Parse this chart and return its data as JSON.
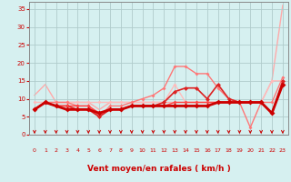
{
  "xlabel": "Vent moyen/en rafales ( km/h )",
  "xlim": [
    -0.5,
    23.5
  ],
  "ylim": [
    0,
    37
  ],
  "yticks": [
    0,
    5,
    10,
    15,
    20,
    25,
    30,
    35
  ],
  "xticks": [
    0,
    1,
    2,
    3,
    4,
    5,
    6,
    7,
    8,
    9,
    10,
    11,
    12,
    13,
    14,
    15,
    16,
    17,
    18,
    19,
    20,
    21,
    22,
    23
  ],
  "bg_color": "#d6f0f0",
  "grid_color": "#b0cccc",
  "series": [
    {
      "x": [
        0,
        1,
        2,
        3,
        4,
        5,
        6,
        7,
        8,
        9,
        10,
        11,
        12,
        13,
        14,
        15,
        16,
        17,
        18,
        19,
        20,
        21,
        22,
        23
      ],
      "y": [
        11,
        14,
        9,
        9,
        9,
        9,
        7,
        9,
        9,
        9,
        9,
        9,
        9,
        9,
        9,
        9,
        9,
        9,
        9,
        9,
        9,
        9,
        15,
        36
      ],
      "color": "#ffaaaa",
      "lw": 1.0,
      "marker": null,
      "ms": 0,
      "zorder": 1
    },
    {
      "x": [
        0,
        1,
        2,
        3,
        4,
        5,
        6,
        7,
        8,
        9,
        10,
        11,
        12,
        13,
        14,
        15,
        16,
        17,
        18,
        19,
        20,
        21,
        22,
        23
      ],
      "y": [
        9,
        9,
        9,
        9,
        9,
        9,
        9,
        9,
        9,
        9,
        9,
        9,
        9,
        14,
        9,
        9,
        9,
        9,
        9,
        9,
        9,
        9,
        15,
        15
      ],
      "color": "#ffbbbb",
      "lw": 1.0,
      "marker": "D",
      "ms": 2.0,
      "zorder": 2
    },
    {
      "x": [
        0,
        1,
        2,
        3,
        4,
        5,
        6,
        7,
        8,
        9,
        10,
        11,
        12,
        13,
        14,
        15,
        16,
        17,
        18,
        19,
        20,
        21,
        22,
        23
      ],
      "y": [
        7,
        9,
        9,
        9,
        8,
        8,
        5,
        8,
        8,
        9,
        10,
        11,
        13,
        19,
        19,
        17,
        17,
        13,
        10,
        9,
        2,
        9,
        9,
        16
      ],
      "color": "#ff7777",
      "lw": 1.0,
      "marker": "D",
      "ms": 2.0,
      "zorder": 3
    },
    {
      "x": [
        0,
        1,
        2,
        3,
        4,
        5,
        6,
        7,
        8,
        9,
        10,
        11,
        12,
        13,
        14,
        15,
        16,
        17,
        18,
        19,
        20,
        21,
        22,
        23
      ],
      "y": [
        7,
        9,
        8,
        8,
        7,
        7,
        5,
        7,
        7,
        8,
        8,
        8,
        9,
        12,
        13,
        13,
        10,
        14,
        10,
        9,
        9,
        9,
        6,
        15
      ],
      "color": "#dd2222",
      "lw": 1.2,
      "marker": "D",
      "ms": 2.5,
      "zorder": 4
    },
    {
      "x": [
        0,
        1,
        2,
        3,
        4,
        5,
        6,
        7,
        8,
        9,
        10,
        11,
        12,
        13,
        14,
        15,
        16,
        17,
        18,
        19,
        20,
        21,
        22,
        23
      ],
      "y": [
        7,
        9,
        8,
        7,
        7,
        7,
        6,
        7,
        7,
        8,
        8,
        8,
        8,
        8,
        8,
        8,
        8,
        9,
        9,
        9,
        9,
        9,
        6,
        14
      ],
      "color": "#cc0000",
      "lw": 2.0,
      "marker": "D",
      "ms": 3.0,
      "zorder": 5
    },
    {
      "x": [
        0,
        1,
        2,
        3,
        4,
        5,
        6,
        7,
        8,
        9,
        10,
        11,
        12,
        13,
        14,
        15,
        16,
        17,
        18,
        19,
        20,
        21,
        22,
        23
      ],
      "y": [
        7,
        9,
        8,
        8,
        8,
        8,
        6,
        7,
        7,
        8,
        8,
        8,
        8,
        9,
        9,
        9,
        9,
        9,
        9,
        9,
        9,
        9,
        6,
        14
      ],
      "color": "#ff4444",
      "lw": 1.0,
      "marker": "D",
      "ms": 2.0,
      "zorder": 4
    }
  ],
  "tick_color": "#cc0000",
  "label_color": "#cc0000"
}
